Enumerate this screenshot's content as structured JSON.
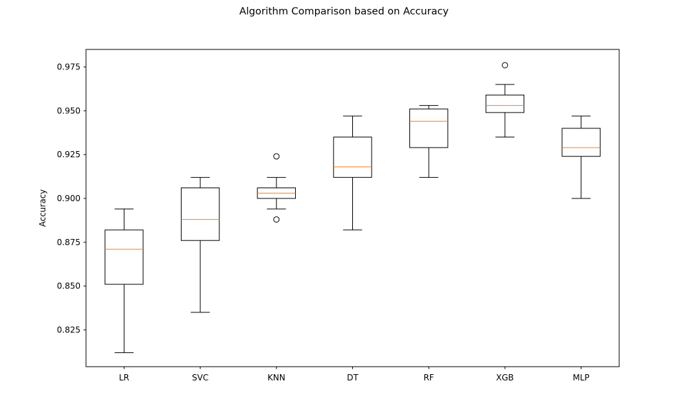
{
  "chart_data": {
    "type": "box",
    "title": "Algorithm Comparison based on Accuracy",
    "xlabel": "",
    "ylabel": "Accuracy",
    "ylim": [
      0.804,
      0.985
    ],
    "yticks": [
      0.825,
      0.85,
      0.875,
      0.9,
      0.925,
      0.95,
      0.975
    ],
    "ytick_labels": [
      "0.825",
      "0.850",
      "0.875",
      "0.900",
      "0.925",
      "0.950",
      "0.975"
    ],
    "grid": false,
    "categories": [
      "LR",
      "SVC",
      "KNN",
      "DT",
      "RF",
      "XGB",
      "MLP"
    ],
    "boxes": [
      {
        "label": "LR",
        "whisker_low": 0.812,
        "q1": 0.851,
        "median": 0.871,
        "q3": 0.882,
        "whisker_high": 0.894,
        "outliers": []
      },
      {
        "label": "SVC",
        "whisker_low": 0.835,
        "q1": 0.876,
        "median": 0.888,
        "q3": 0.906,
        "whisker_high": 0.912,
        "outliers": []
      },
      {
        "label": "KNN",
        "whisker_low": 0.894,
        "q1": 0.9,
        "median": 0.903,
        "q3": 0.906,
        "whisker_high": 0.912,
        "outliers": [
          0.888,
          0.924
        ]
      },
      {
        "label": "DT",
        "whisker_low": 0.882,
        "q1": 0.912,
        "median": 0.918,
        "q3": 0.935,
        "whisker_high": 0.947,
        "outliers": []
      },
      {
        "label": "RF",
        "whisker_low": 0.912,
        "q1": 0.929,
        "median": 0.944,
        "q3": 0.951,
        "whisker_high": 0.953,
        "outliers": []
      },
      {
        "label": "XGB",
        "whisker_low": 0.935,
        "q1": 0.949,
        "median": 0.953,
        "q3": 0.959,
        "whisker_high": 0.965,
        "outliers": [
          0.976
        ]
      },
      {
        "label": "MLP",
        "whisker_low": 0.9,
        "q1": 0.924,
        "median": 0.929,
        "q3": 0.94,
        "whisker_high": 0.947,
        "outliers": []
      }
    ],
    "colors": {
      "box": "#000000",
      "median": "#ff7f0e",
      "outlier": "#000000",
      "background": "#ffffff"
    }
  }
}
